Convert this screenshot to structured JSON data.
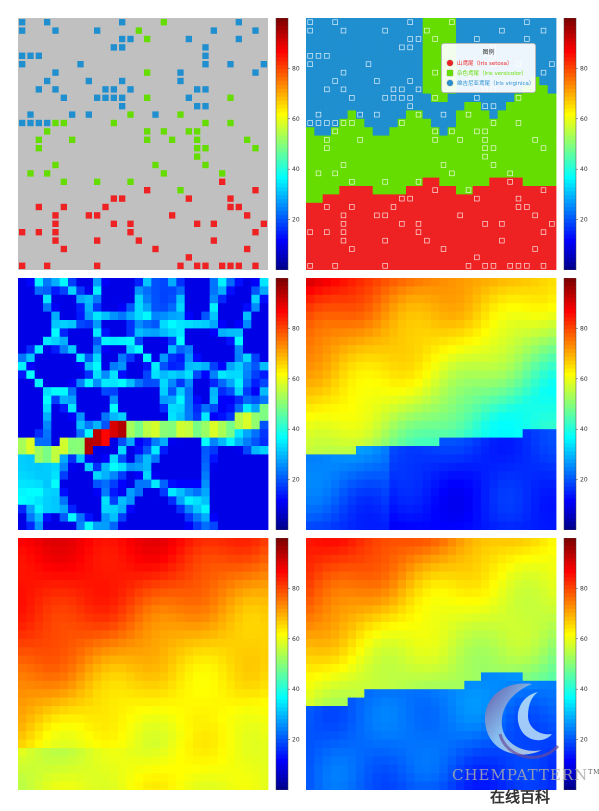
{
  "colorbar": {
    "ticks": [
      20,
      40,
      60,
      80
    ],
    "range": [
      0,
      100
    ],
    "colormap": "jet"
  },
  "legend": {
    "title": "图例",
    "entries": [
      {
        "label": "山鸢尾（Iris setosa）",
        "color": "#ee2222"
      },
      {
        "label": "杂色鸢尾（Iris versicolor）",
        "color": "#66dd00"
      },
      {
        "label": "维吉尼亚鸢尾（Iris virginica）",
        "color": "#2a8fd0"
      }
    ]
  },
  "colors": {
    "setosa": "#ee2222",
    "versicolor": "#66dd00",
    "virginica": "#1f8fd0",
    "background": "#c0c0c0"
  },
  "watermark": {
    "brand": "CHEMPATTERN",
    "tm": "TM",
    "subtitle": "在线百科"
  },
  "chart_data": [
    {
      "panel": 1,
      "type": "scatter",
      "description_key": "sample-map",
      "grid": [
        30,
        30
      ],
      "classes": [
        "setosa",
        "versicolor",
        "virginica"
      ],
      "colorbar_ticks": [
        20,
        40,
        60,
        80
      ]
    },
    {
      "panel": 2,
      "type": "heatmap",
      "grid": [
        30,
        30
      ],
      "classes": [
        "setosa",
        "versicolor",
        "virginica"
      ],
      "colorbar_ticks": [
        20,
        40,
        60,
        80
      ]
    },
    {
      "panel": 3,
      "type": "heatmap",
      "grid": [
        30,
        30
      ],
      "colorbar_ticks": [
        20,
        40,
        60,
        80
      ]
    },
    {
      "panel": 4,
      "type": "heatmap",
      "grid": [
        30,
        30
      ],
      "colorbar_ticks": [
        20,
        40,
        60,
        80
      ]
    },
    {
      "panel": 5,
      "type": "heatmap",
      "grid": [
        30,
        30
      ],
      "colorbar_ticks": [
        20,
        40,
        60,
        80
      ]
    },
    {
      "panel": 6,
      "type": "heatmap",
      "grid": [
        30,
        30
      ],
      "colorbar_ticks": [
        20,
        40,
        60,
        80
      ]
    }
  ]
}
